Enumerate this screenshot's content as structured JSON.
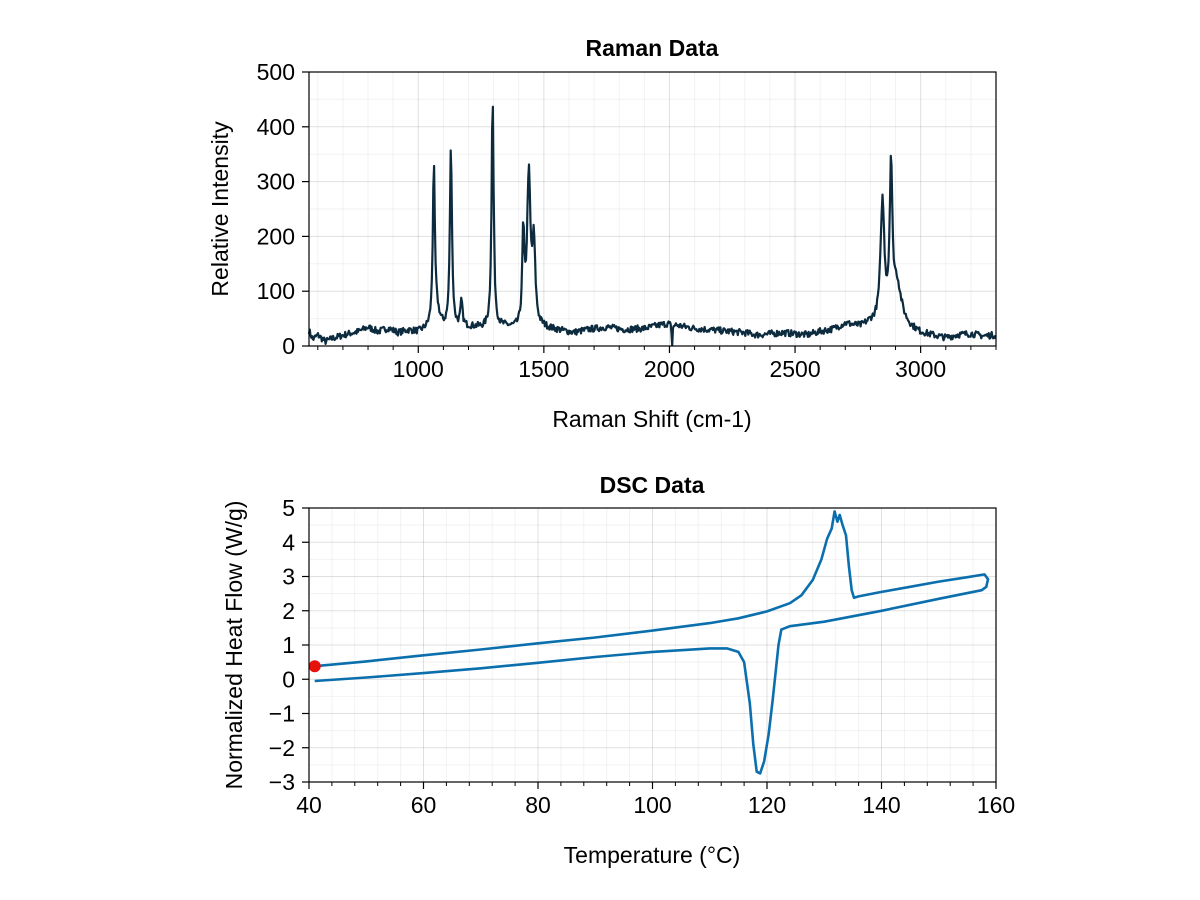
{
  "chart_data": [
    {
      "type": "line",
      "title": "Raman Data",
      "xlabel": "Raman Shift (cm-1)",
      "ylabel": "Relative Intensity",
      "xlim": [
        565,
        3300
      ],
      "ylim": [
        0,
        500
      ],
      "xticks": [
        1000,
        1500,
        2000,
        2500,
        3000
      ],
      "yticks": [
        0,
        100,
        200,
        300,
        400,
        500
      ],
      "grid": true,
      "colors": {
        "line": "#0d2b3e"
      },
      "baseline": [
        [
          565,
          28
        ],
        [
          580,
          12
        ],
        [
          600,
          20
        ],
        [
          630,
          8
        ],
        [
          660,
          14
        ],
        [
          690,
          18
        ],
        [
          720,
          22
        ],
        [
          760,
          26
        ],
        [
          800,
          34
        ],
        [
          840,
          26
        ],
        [
          880,
          32
        ],
        [
          920,
          24
        ],
        [
          960,
          28
        ],
        [
          1000,
          25
        ],
        [
          1040,
          30
        ],
        [
          1100,
          30
        ],
        [
          1200,
          34
        ],
        [
          1260,
          32
        ],
        [
          1350,
          33
        ],
        [
          1400,
          28
        ],
        [
          1500,
          32
        ],
        [
          1560,
          28
        ],
        [
          1620,
          24
        ],
        [
          1680,
          30
        ],
        [
          1750,
          34
        ],
        [
          1820,
          30
        ],
        [
          1900,
          32
        ],
        [
          1960,
          38
        ],
        [
          2000,
          42
        ],
        [
          2050,
          36
        ],
        [
          2100,
          32
        ],
        [
          2150,
          30
        ],
        [
          2200,
          28
        ],
        [
          2250,
          26
        ],
        [
          2300,
          24
        ],
        [
          2350,
          20
        ],
        [
          2400,
          22
        ],
        [
          2450,
          24
        ],
        [
          2500,
          22
        ],
        [
          2550,
          20
        ],
        [
          2600,
          26
        ],
        [
          2650,
          30
        ],
        [
          2700,
          40
        ],
        [
          2760,
          34
        ],
        [
          2800,
          40
        ],
        [
          2950,
          30
        ],
        [
          3000,
          22
        ],
        [
          3050,
          18
        ],
        [
          3100,
          14
        ],
        [
          3150,
          20
        ],
        [
          3200,
          22
        ],
        [
          3250,
          18
        ],
        [
          3300,
          20
        ]
      ],
      "peaks": [
        {
          "x": 1062,
          "y": 317,
          "w": 5
        },
        {
          "x": 1075,
          "y": 55,
          "w": 14
        },
        {
          "x": 1130,
          "y": 362,
          "w": 5
        },
        {
          "x": 1172,
          "y": 78,
          "w": 5
        },
        {
          "x": 1296,
          "y": 450,
          "w": 5
        },
        {
          "x": 1418,
          "y": 195,
          "w": 5
        },
        {
          "x": 1440,
          "y": 305,
          "w": 8
        },
        {
          "x": 1460,
          "y": 175,
          "w": 7
        },
        {
          "x": 2848,
          "y": 255,
          "w": 9
        },
        {
          "x": 2882,
          "y": 305,
          "w": 6
        },
        {
          "x": 2905,
          "y": 110,
          "w": 22
        }
      ],
      "dips": [
        {
          "x": 2010,
          "y": -45,
          "w": 2
        }
      ]
    },
    {
      "type": "line",
      "title": "DSC Data",
      "xlabel": "Temperature (°C)",
      "ylabel": "Normalized Heat Flow (W/g)",
      "xlim": [
        40,
        160
      ],
      "ylim": [
        -3,
        5
      ],
      "xticks": [
        40,
        60,
        80,
        100,
        120,
        140,
        160
      ],
      "yticks": [
        -3,
        -2,
        -1,
        0,
        1,
        2,
        3,
        4,
        5
      ],
      "ytick_labels": [
        "−3",
        "−2",
        "−1",
        "0",
        "1",
        "2",
        "3",
        "4",
        "5"
      ],
      "grid": true,
      "colors": {
        "line": "#0b6fae",
        "marker": "#e8120c"
      },
      "marker": {
        "x": 41,
        "y": 0.38
      },
      "curve": [
        [
          41,
          0.38
        ],
        [
          50,
          0.52
        ],
        [
          60,
          0.7
        ],
        [
          70,
          0.87
        ],
        [
          80,
          1.05
        ],
        [
          90,
          1.22
        ],
        [
          100,
          1.42
        ],
        [
          110,
          1.64
        ],
        [
          115,
          1.78
        ],
        [
          120,
          1.98
        ],
        [
          124,
          2.22
        ],
        [
          126,
          2.45
        ],
        [
          128,
          2.9
        ],
        [
          129.5,
          3.5
        ],
        [
          130.5,
          4.1
        ],
        [
          131.3,
          4.4
        ],
        [
          131.8,
          4.9
        ],
        [
          132.3,
          4.6
        ],
        [
          132.7,
          4.8
        ],
        [
          133.2,
          4.5
        ],
        [
          133.8,
          4.2
        ],
        [
          134.3,
          3.3
        ],
        [
          134.8,
          2.6
        ],
        [
          135.2,
          2.38
        ],
        [
          136,
          2.42
        ],
        [
          140,
          2.55
        ],
        [
          145,
          2.7
        ],
        [
          150,
          2.85
        ],
        [
          155,
          2.98
        ],
        [
          158,
          3.06
        ],
        [
          158.6,
          2.92
        ],
        [
          158.3,
          2.7
        ],
        [
          157.5,
          2.6
        ],
        [
          150,
          2.35
        ],
        [
          140,
          2.0
        ],
        [
          130,
          1.68
        ],
        [
          124,
          1.55
        ],
        [
          122.5,
          1.45
        ],
        [
          122,
          1.0
        ],
        [
          121.5,
          0.2
        ],
        [
          121,
          -0.6
        ],
        [
          120.3,
          -1.6
        ],
        [
          119.5,
          -2.4
        ],
        [
          118.8,
          -2.75
        ],
        [
          118.2,
          -2.7
        ],
        [
          117.6,
          -1.9
        ],
        [
          117,
          -0.7
        ],
        [
          116,
          0.5
        ],
        [
          115,
          0.8
        ],
        [
          113,
          0.9
        ],
        [
          110,
          0.9
        ],
        [
          100,
          0.8
        ],
        [
          90,
          0.65
        ],
        [
          80,
          0.48
        ],
        [
          70,
          0.32
        ],
        [
          60,
          0.18
        ],
        [
          50,
          0.05
        ],
        [
          41,
          -0.05
        ]
      ]
    }
  ]
}
